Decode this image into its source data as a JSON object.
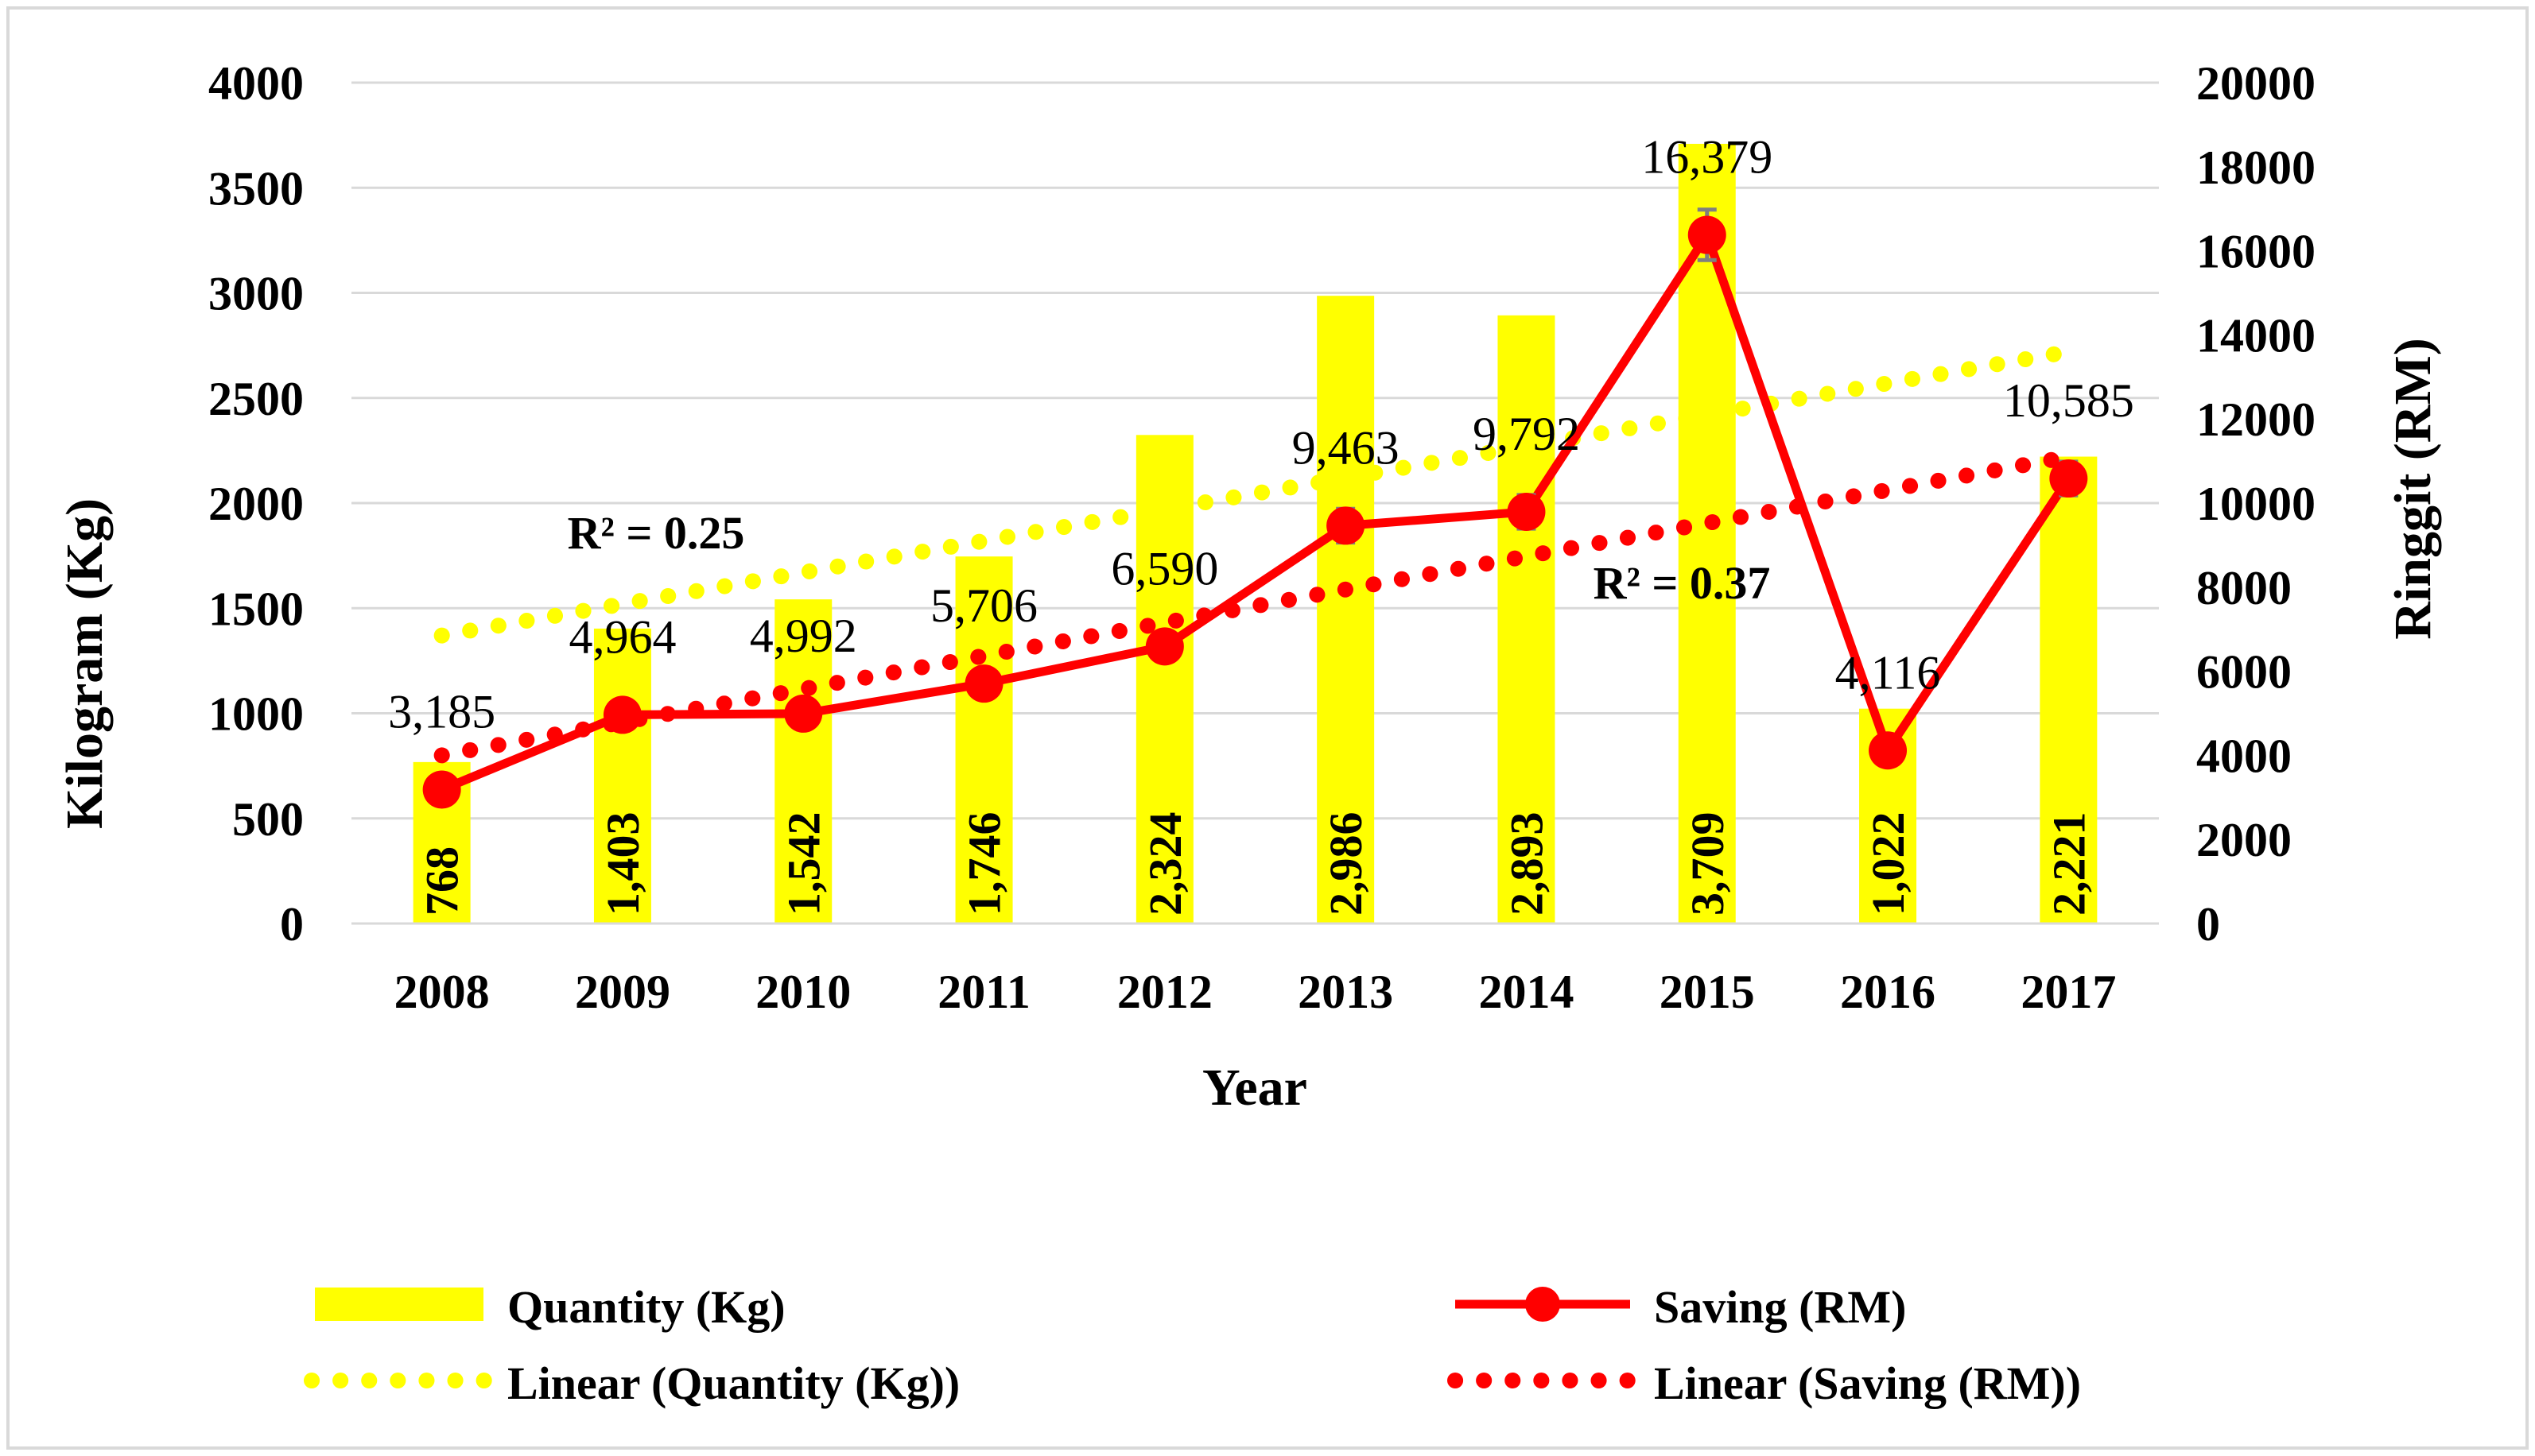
{
  "chart_data": {
    "type": "bar+line",
    "categories": [
      "2008",
      "2009",
      "2010",
      "2011",
      "2012",
      "2013",
      "2014",
      "2015",
      "2016",
      "2017"
    ],
    "xlabel": "Year",
    "ylabel_left": "Kilogram (Kg)",
    "ylabel_right": "Ringgit (RM)",
    "ylim_left": [
      0,
      4000
    ],
    "ylim_right": [
      0,
      20000
    ],
    "yticks_left": [
      "0",
      "500",
      "1000",
      "1500",
      "2000",
      "2500",
      "3000",
      "3500",
      "4000"
    ],
    "yticks_right": [
      "0",
      "2000",
      "4000",
      "6000",
      "8000",
      "10000",
      "12000",
      "14000",
      "16000",
      "18000",
      "20000"
    ],
    "grid": true,
    "legend_position": "bottom",
    "series": [
      {
        "name": "Quantity (Kg)",
        "kind": "bar",
        "axis": "left",
        "color": "#FFFF00",
        "values": [
          768,
          1403,
          1542,
          1746,
          2324,
          2986,
          2893,
          3709,
          1022,
          2221
        ],
        "labels": [
          "768",
          "1,403",
          "1,542",
          "1,746",
          "2,324",
          "2,986",
          "2,893",
          "3,709",
          "1,022",
          "2,221"
        ]
      },
      {
        "name": "Saving (RM)",
        "kind": "line",
        "axis": "right",
        "color": "#FF0000",
        "values": [
          3185,
          4964,
          4992,
          5706,
          6590,
          9463,
          9792,
          16379,
          4116,
          10585
        ],
        "labels": [
          "3,185",
          "4,964",
          "4,992",
          "5,706",
          "6,590",
          "9,463",
          "9,792",
          "16,379",
          "4,116",
          "10,585"
        ],
        "error_bars": [
          0,
          0,
          0,
          0,
          0,
          400,
          400,
          600,
          0,
          400
        ]
      },
      {
        "name": "Linear (Quantity (Kg))",
        "kind": "trendline",
        "axis": "left",
        "color": "#FFFF00",
        "start": 1370,
        "end": 2720,
        "r_squared": "R² = 0.25"
      },
      {
        "name": "Linear (Saving (RM))",
        "kind": "trendline",
        "axis": "right",
        "color": "#FF0000",
        "start": 4000,
        "end": 11100,
        "r_squared": "R² = 0.37"
      }
    ]
  }
}
